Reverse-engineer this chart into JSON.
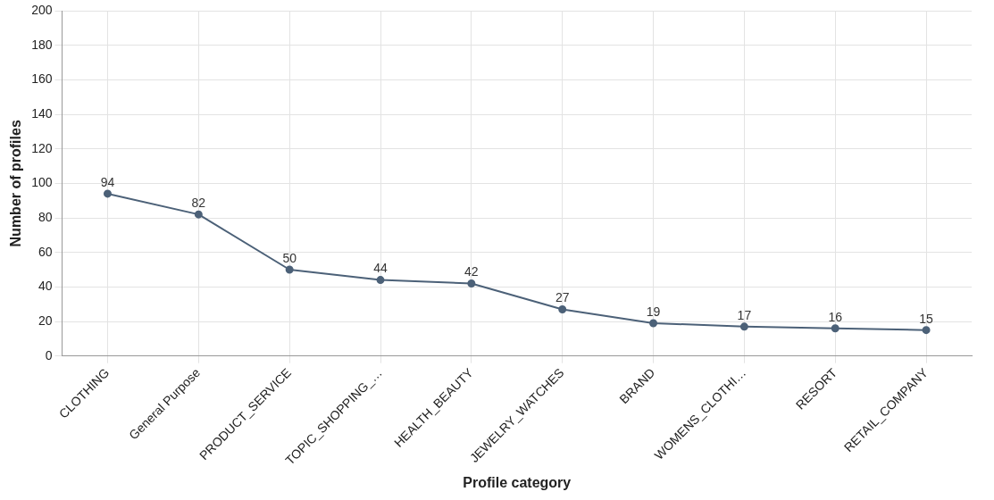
{
  "chart_data": {
    "type": "line",
    "xlabel": "Profile category",
    "ylabel": "Number of profiles",
    "categories": [
      "CLOTHING",
      "General Purpose",
      "PRODUCT_SERVICE",
      "TOPIC_SHOPPING_…",
      "HEALTH_BEAUTY",
      "JEWELRY_WATCHES",
      "BRAND",
      "WOMENS_CLOTHI…",
      "RESORT",
      "RETAIL_COMPANY"
    ],
    "series": [
      {
        "color": "#4c6178",
        "values": [
          94,
          82,
          50,
          44,
          42,
          27,
          19,
          17,
          16,
          15
        ]
      }
    ],
    "ylim": [
      0,
      200
    ],
    "yticks": [
      0,
      20,
      40,
      60,
      80,
      100,
      120,
      140,
      160,
      180,
      200
    ],
    "grid": true,
    "marker": "circle",
    "line_style": "solid",
    "data_labels": true,
    "legend": false
  }
}
